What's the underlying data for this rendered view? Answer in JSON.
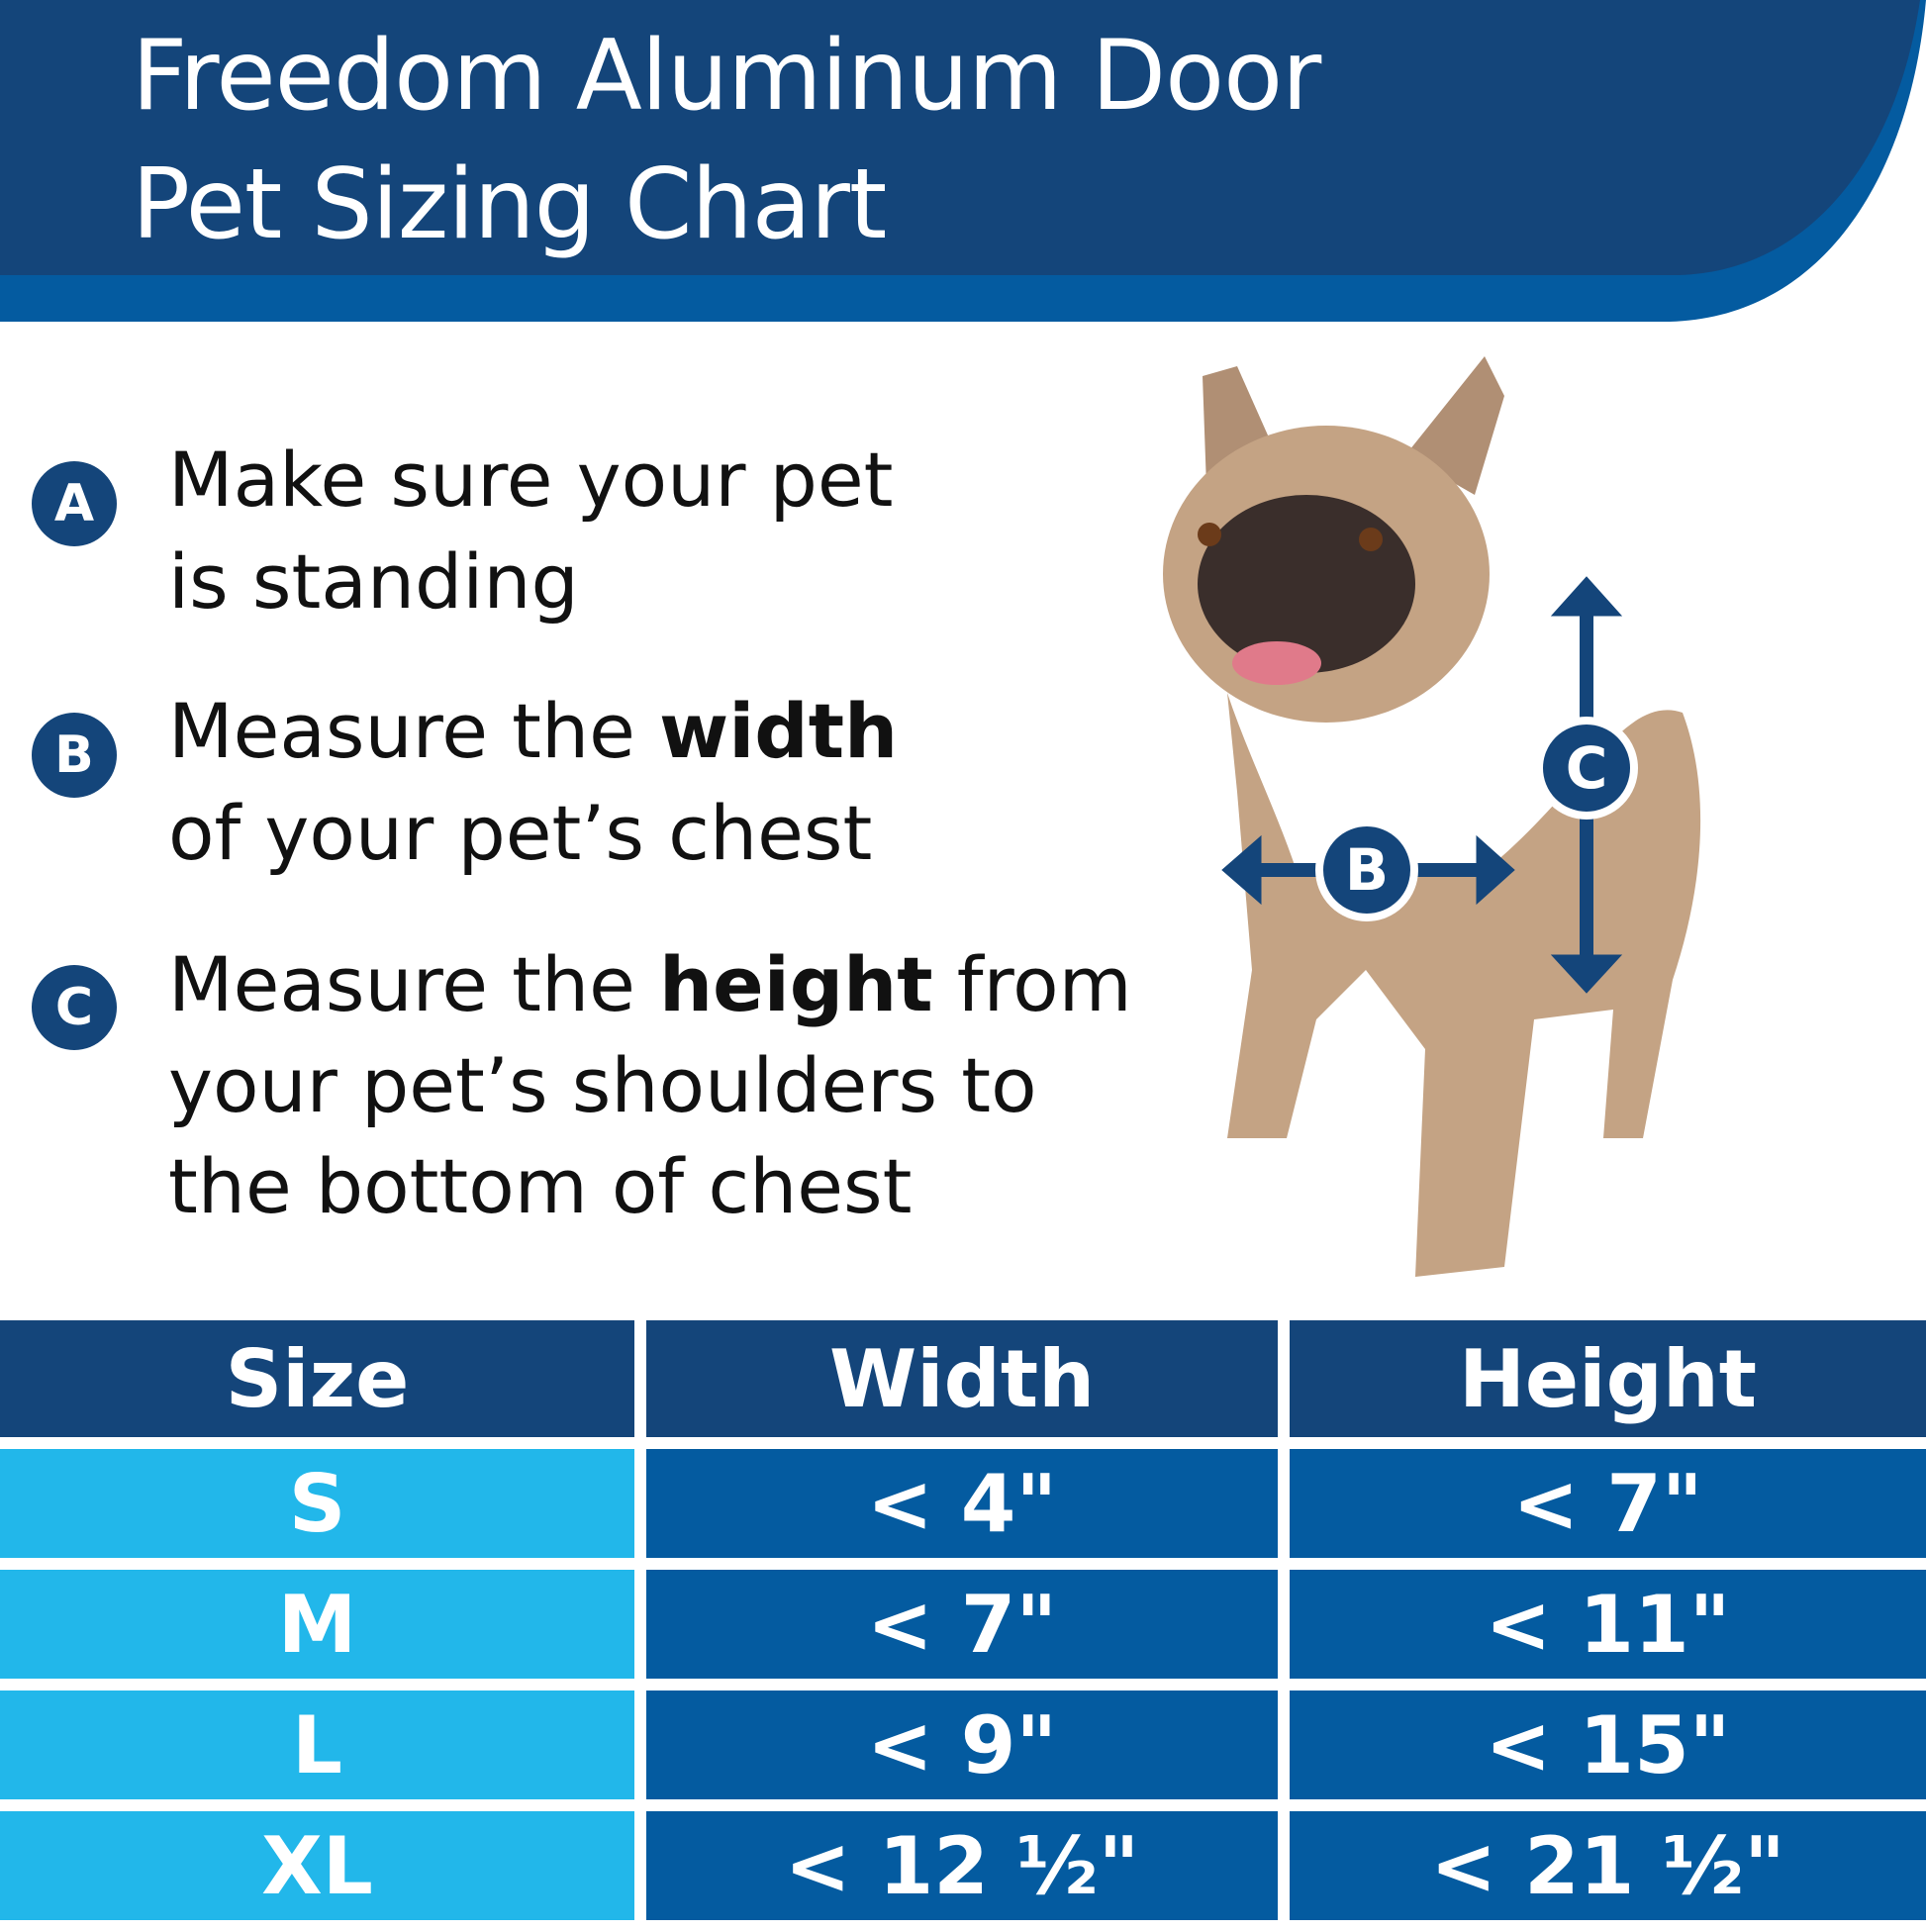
{
  "header": {
    "title_line1": "Freedom Aluminum Door",
    "title_line2": "Pet Sizing Chart"
  },
  "steps": [
    {
      "letter": "A",
      "lines": [
        [
          "Make sure your pet"
        ],
        [
          "is standing"
        ]
      ]
    },
    {
      "letter": "B",
      "pre": "Measure the ",
      "bold": "width",
      "post": "",
      "line2": "of your pet’s chest"
    },
    {
      "letter": "C",
      "pre": "Measure the ",
      "bold": "height",
      "post": " from",
      "line2": "your pet’s shoulders to",
      "line3": "the bottom of chest"
    }
  ],
  "diagram": {
    "width_marker": "B",
    "height_marker": "C"
  },
  "table": {
    "headers": [
      "Size",
      "Width",
      "Height"
    ],
    "rows": [
      {
        "size": "S",
        "width": "< 4\"",
        "height": "< 7\""
      },
      {
        "size": "M",
        "width": "< 7\"",
        "height": "< 11\""
      },
      {
        "size": "L",
        "width": "< 9\"",
        "height": "< 15\""
      },
      {
        "size": "XL",
        "width": "< 12 ½\"",
        "height": "< 21 ½\""
      }
    ]
  },
  "colors": {
    "navy": "#14457a",
    "blue": "#045ba0",
    "light_blue": "#22b7ea"
  }
}
